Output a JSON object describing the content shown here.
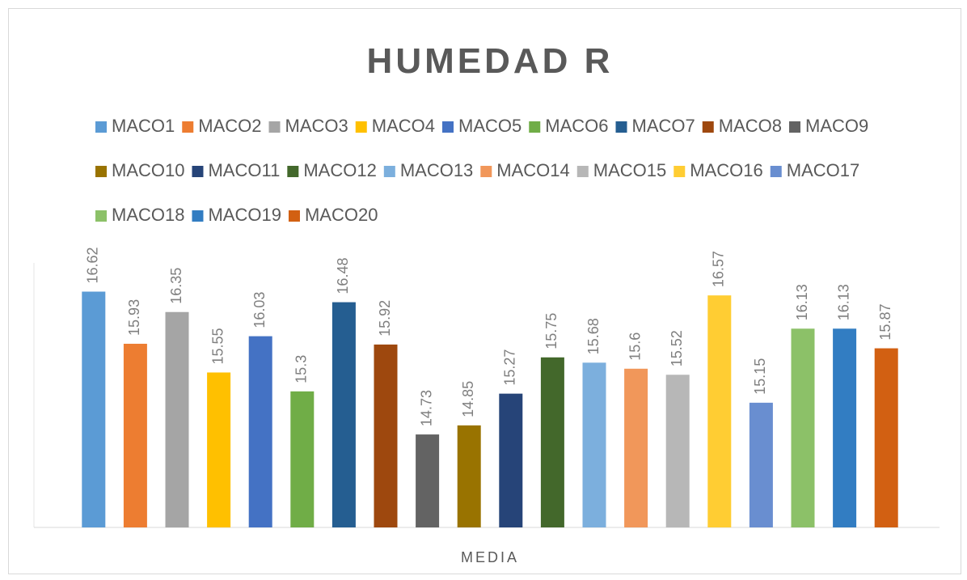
{
  "chart_data": {
    "type": "bar",
    "title": "HUMEDAD  R",
    "categories": [
      "MEDIA"
    ],
    "ylim": [
      13.5,
      17
    ],
    "series": [
      {
        "name": "MACO1",
        "color": "#5b9bd5",
        "values": [
          16.62
        ]
      },
      {
        "name": "MACO2",
        "color": "#ed7d31",
        "values": [
          15.93
        ]
      },
      {
        "name": "MACO3",
        "color": "#a5a5a5",
        "values": [
          16.35
        ]
      },
      {
        "name": "MACO4",
        "color": "#ffc000",
        "values": [
          15.55
        ]
      },
      {
        "name": "MACO5",
        "color": "#4472c4",
        "values": [
          16.03
        ]
      },
      {
        "name": "MACO6",
        "color": "#70ad47",
        "values": [
          15.3
        ]
      },
      {
        "name": "MACO7",
        "color": "#255e91",
        "values": [
          16.48
        ]
      },
      {
        "name": "MACO8",
        "color": "#9e480e",
        "values": [
          15.92
        ]
      },
      {
        "name": "MACO9",
        "color": "#636363",
        "values": [
          14.73
        ]
      },
      {
        "name": "MACO10",
        "color": "#997300",
        "values": [
          14.85
        ]
      },
      {
        "name": "MACO11",
        "color": "#264478",
        "values": [
          15.27
        ]
      },
      {
        "name": "MACO12",
        "color": "#43682b",
        "values": [
          15.75
        ]
      },
      {
        "name": "MACO13",
        "color": "#7cafdd",
        "values": [
          15.68
        ]
      },
      {
        "name": "MACO14",
        "color": "#f1975a",
        "values": [
          15.6
        ]
      },
      {
        "name": "MACO15",
        "color": "#b7b7b7",
        "values": [
          15.52
        ]
      },
      {
        "name": "MACO16",
        "color": "#ffcd33",
        "values": [
          16.57
        ]
      },
      {
        "name": "MACO17",
        "color": "#698ed0",
        "values": [
          15.15
        ]
      },
      {
        "name": "MACO18",
        "color": "#8cc168",
        "values": [
          16.13
        ]
      },
      {
        "name": "MACO19",
        "color": "#327dc2",
        "values": [
          16.13
        ]
      },
      {
        "name": "MACO20",
        "color": "#d26012",
        "values": [
          15.87
        ]
      }
    ]
  }
}
